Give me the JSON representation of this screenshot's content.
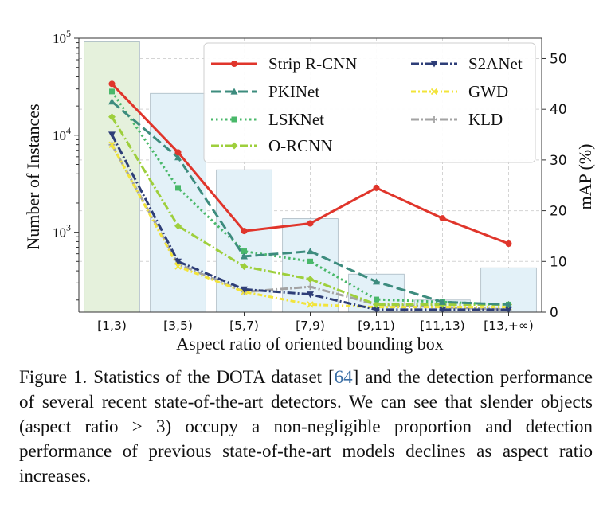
{
  "chart_data": {
    "type": "bar+line",
    "title": "",
    "categories": [
      "[1,3)",
      "[3,5)",
      "[5,7)",
      "[7,9)",
      "[9,11)",
      "[11,13)",
      "[13,+∞)"
    ],
    "xlabel": "Aspect ratio of oriented bounding box",
    "ylabel_left": "Number of Instances",
    "ylabel_right": "mAP (%)",
    "left_axis": {
      "scale": "log",
      "lim": [
        150,
        100000
      ],
      "ticks": [
        {
          "value": 1000,
          "base": "10",
          "exp": "3"
        },
        {
          "value": 10000,
          "base": "10",
          "exp": "4"
        },
        {
          "value": 100000,
          "base": "10",
          "exp": "5"
        }
      ]
    },
    "right_axis": {
      "scale": "linear",
      "lim": [
        0,
        54
      ],
      "ticks": [
        "0",
        "10",
        "20",
        "30",
        "40",
        "50"
      ]
    },
    "bars": {
      "name": "Number of Instances",
      "values": [
        92000,
        27000,
        4400,
        1380,
        370,
        200,
        430
      ],
      "colors": [
        "#e5f1dc",
        "#e3f1f8",
        "#e3f1f8",
        "#e3f1f8",
        "#e3f1f8",
        "#e3f1f8",
        "#e3f1f8"
      ],
      "edge_color": "#a9b9c3"
    },
    "series": [
      {
        "name": "Strip R-CNN",
        "color": "#e0352b",
        "dash": "solid",
        "marker": "circle",
        "values": [
          45.0,
          31.5,
          16.0,
          17.5,
          24.5,
          18.5,
          13.5
        ]
      },
      {
        "name": "PKINet",
        "color": "#3d8c7e",
        "dash": "dash",
        "marker": "triangle",
        "values": [
          41.5,
          30.5,
          11.0,
          12.0,
          6.0,
          2.0,
          1.5
        ]
      },
      {
        "name": "LSKNet",
        "color": "#49b86a",
        "dash": "dot",
        "marker": "square",
        "values": [
          43.5,
          24.5,
          12.0,
          10.0,
          2.5,
          2.0,
          1.5
        ]
      },
      {
        "name": "O-RCNN",
        "color": "#9ecf3c",
        "dash": "dashdot",
        "marker": "diamond",
        "values": [
          38.5,
          17.0,
          9.0,
          6.5,
          1.5,
          1.5,
          1.5
        ]
      },
      {
        "name": "S2ANet",
        "color": "#2e3e78",
        "dash": "dashdot",
        "marker": "tri_down",
        "values": [
          35.0,
          10.0,
          4.5,
          3.5,
          0.5,
          0.5,
          0.5
        ]
      },
      {
        "name": "GWD",
        "color": "#f2e43a",
        "dash": "dashdot2",
        "marker": "x",
        "values": [
          33.0,
          9.0,
          4.0,
          1.5,
          1.0,
          1.0,
          1.0
        ]
      },
      {
        "name": "KLD",
        "color": "#a3a3a3",
        "dash": "dashdot",
        "marker": "plus",
        "values": [
          33.0,
          9.5,
          4.0,
          5.0,
          1.5,
          1.0,
          0.5
        ]
      }
    ],
    "grid": true,
    "legend_position": "top-right"
  },
  "caption": {
    "before_ref": "Figure 1.  Statistics of the DOTA dataset [",
    "ref": "64",
    "after_ref": "] and the detection performance of several recent state-of-the-art detectors.  We can see that slender objects (aspect ratio > 3) occupy a non-negligible proportion and detection performance of previous state-of-the-art models declines as aspect ratio increases."
  }
}
